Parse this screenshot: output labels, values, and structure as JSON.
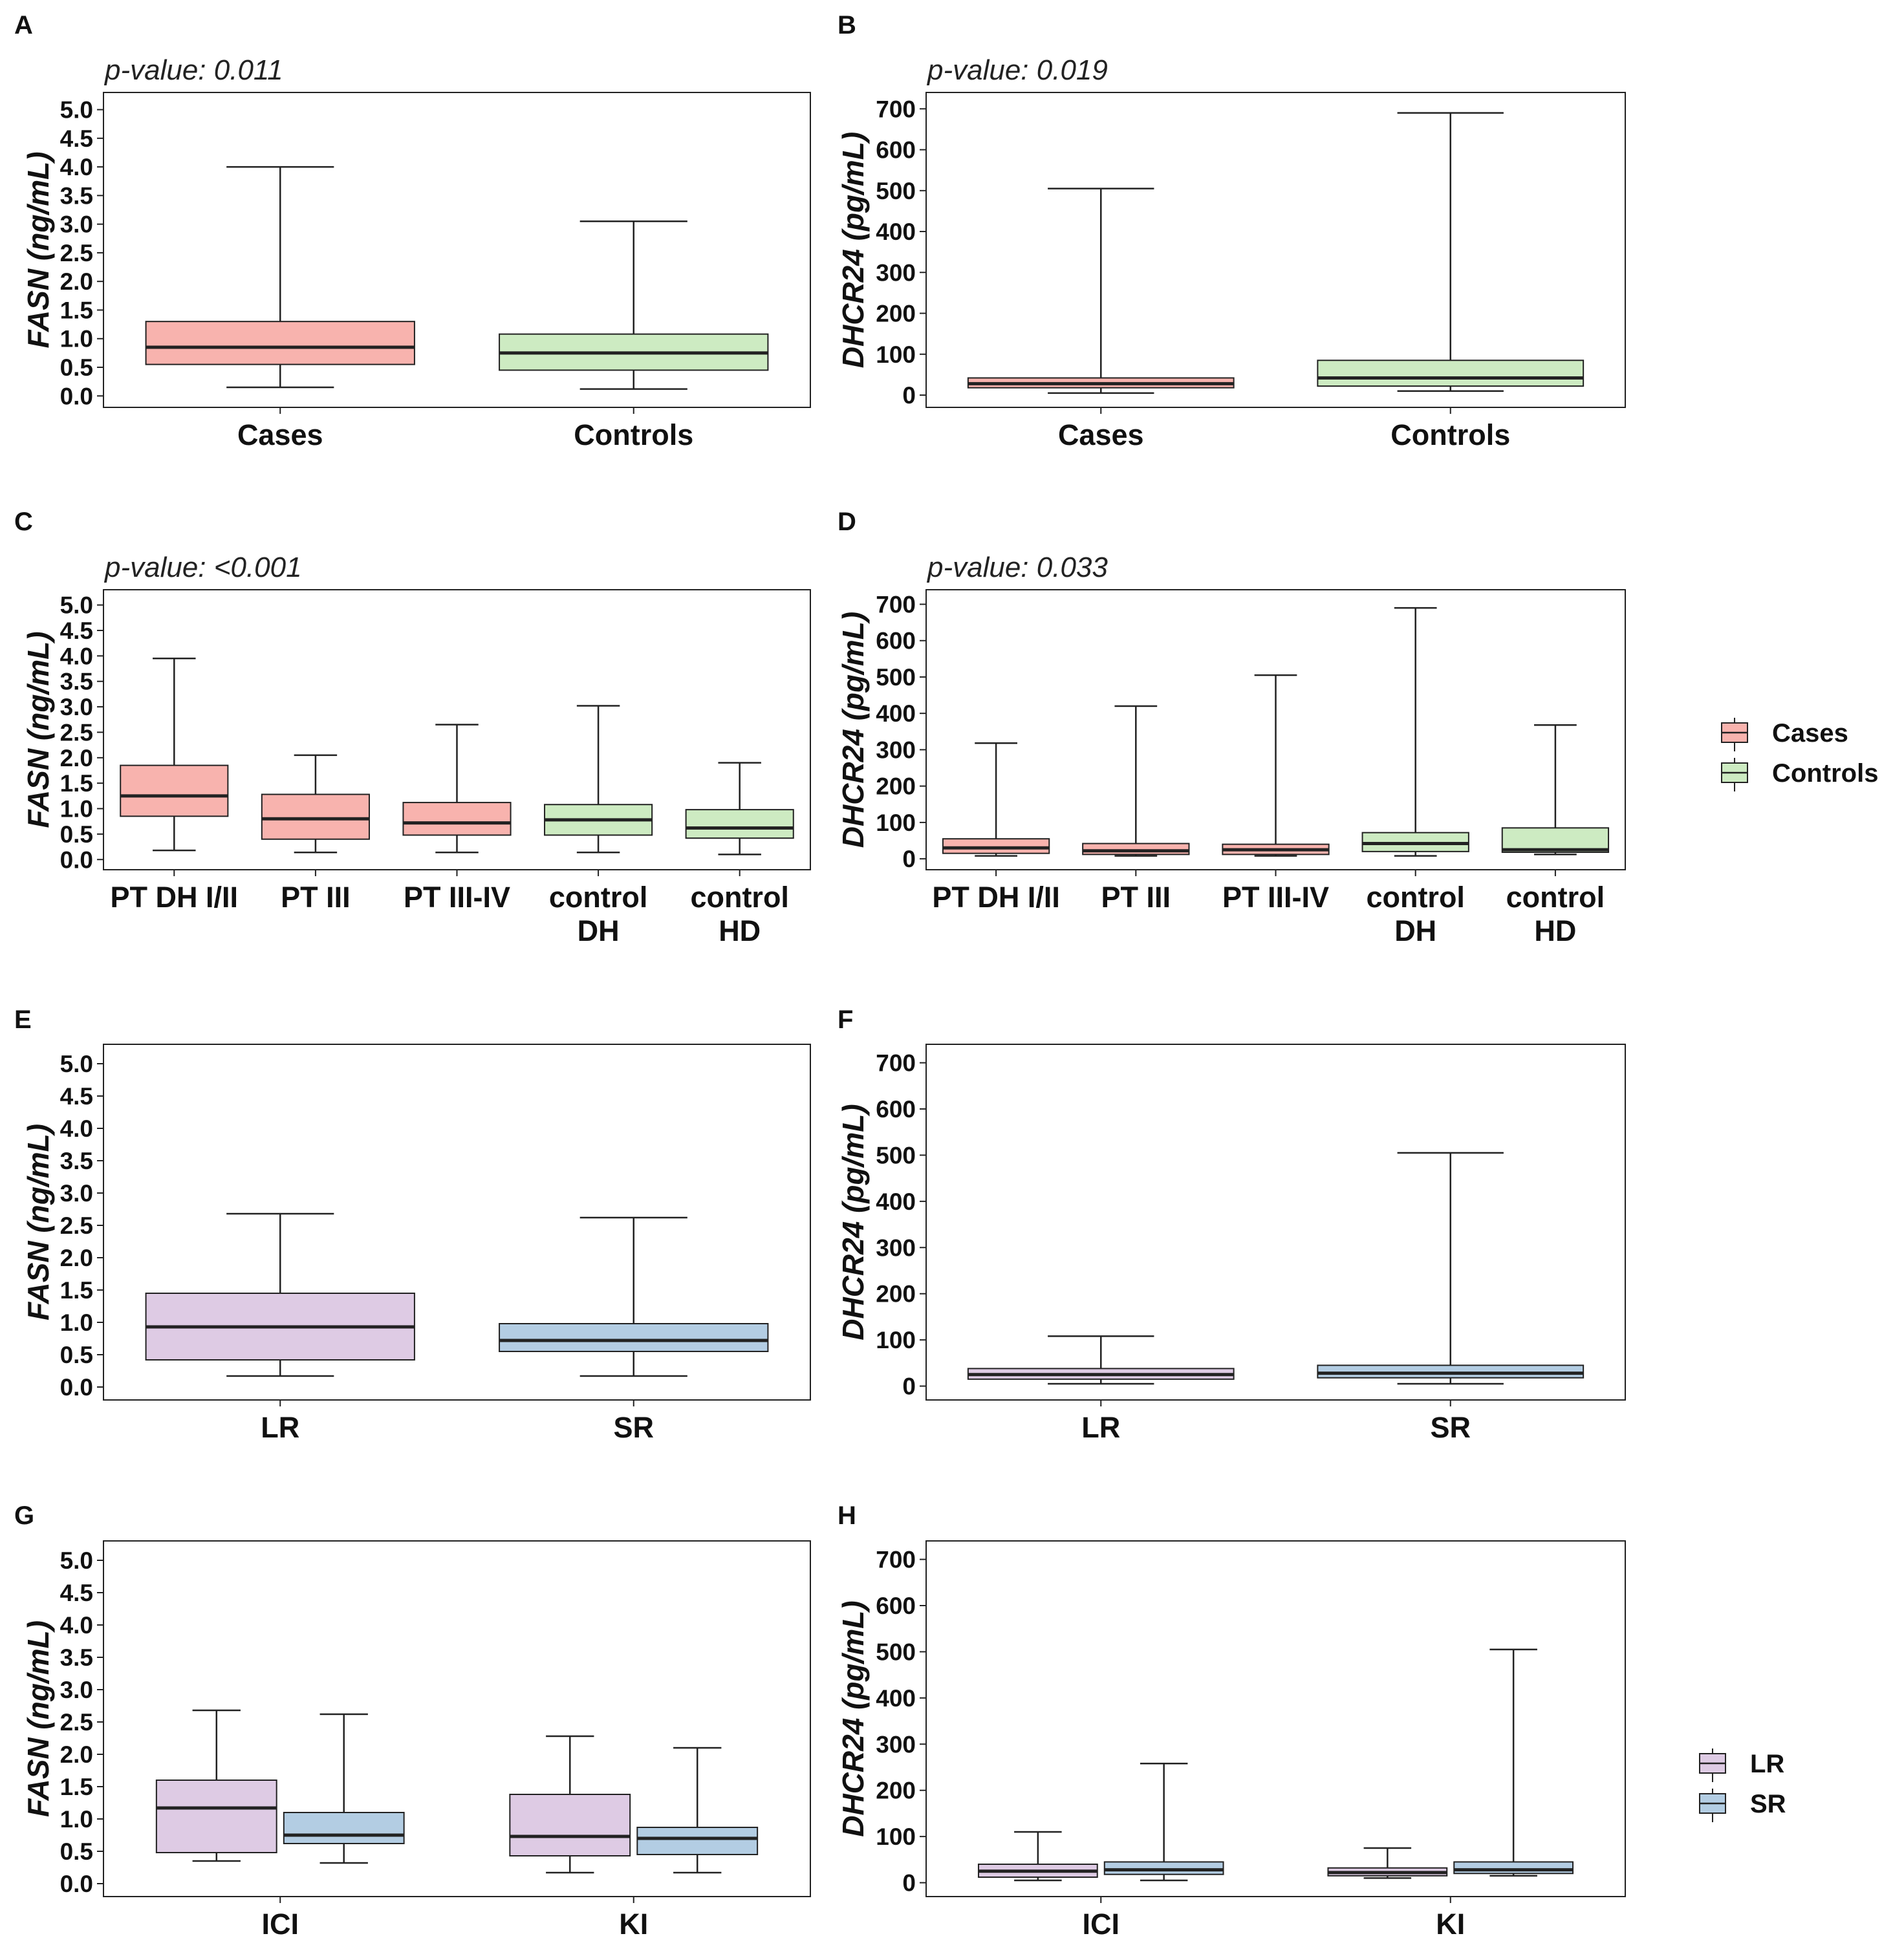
{
  "colors": {
    "cases": "#F8B3AE",
    "controls": "#CDEBC2",
    "lr": "#DECBE4",
    "sr": "#B3CDE3",
    "line": "#222222"
  },
  "legends": [
    {
      "id": "legend-cases-controls",
      "items": [
        {
          "label": "Cases",
          "color_key": "cases"
        },
        {
          "label": "Controls",
          "color_key": "controls"
        }
      ]
    },
    {
      "id": "legend-lr-sr",
      "items": [
        {
          "label": "LR",
          "color_key": "lr"
        },
        {
          "label": "SR",
          "color_key": "sr"
        }
      ]
    }
  ],
  "chart_data": [
    {
      "panel": "A",
      "type": "box",
      "pvalue": "p-value: 0.011",
      "ylabel": "FASN (ng/mL)",
      "ylim": [
        -0.2,
        5.3
      ],
      "yticks": [
        "0.0",
        "0.5",
        "1.0",
        "1.5",
        "2.0",
        "2.5",
        "3.0",
        "3.5",
        "4.0",
        "4.5",
        "5.0"
      ],
      "categories": [
        [
          "Cases"
        ],
        [
          "Controls"
        ]
      ],
      "boxes": [
        {
          "group": "Cases",
          "color_key": "cases",
          "min": 0.15,
          "q1": 0.55,
          "median": 0.85,
          "q3": 1.3,
          "max": 4.0
        },
        {
          "group": "Controls",
          "color_key": "controls",
          "min": 0.12,
          "q1": 0.45,
          "median": 0.75,
          "q3": 1.08,
          "max": 3.05
        }
      ]
    },
    {
      "panel": "B",
      "type": "box",
      "pvalue": "p-value: 0.019",
      "ylabel": "DHCR24 (pg/mL)",
      "ylim": [
        -30,
        740
      ],
      "yticks": [
        "0",
        "100",
        "200",
        "300",
        "400",
        "500",
        "600",
        "700"
      ],
      "categories": [
        [
          "Cases"
        ],
        [
          "Controls"
        ]
      ],
      "boxes": [
        {
          "group": "Cases",
          "color_key": "cases",
          "min": 5,
          "q1": 18,
          "median": 28,
          "q3": 42,
          "max": 505
        },
        {
          "group": "Controls",
          "color_key": "controls",
          "min": 10,
          "q1": 22,
          "median": 42,
          "q3": 85,
          "max": 690
        }
      ]
    },
    {
      "panel": "C",
      "type": "box",
      "pvalue": "p-value: <0.001",
      "ylabel": "FASN (ng/mL)",
      "ylim": [
        -0.2,
        5.3
      ],
      "yticks": [
        "0.0",
        "0.5",
        "1.0",
        "1.5",
        "2.0",
        "2.5",
        "3.0",
        "3.5",
        "4.0",
        "4.5",
        "5.0"
      ],
      "categories": [
        [
          "PT DH I/II"
        ],
        [
          "PT III"
        ],
        [
          "PT III-IV"
        ],
        [
          "control",
          "DH"
        ],
        [
          "control",
          "HD"
        ]
      ],
      "boxes": [
        {
          "group": "PT DH I/II",
          "color_key": "cases",
          "min": 0.18,
          "q1": 0.85,
          "median": 1.25,
          "q3": 1.85,
          "max": 3.95
        },
        {
          "group": "PT III",
          "color_key": "cases",
          "min": 0.14,
          "q1": 0.4,
          "median": 0.8,
          "q3": 1.28,
          "max": 2.05
        },
        {
          "group": "PT III-IV",
          "color_key": "cases",
          "min": 0.14,
          "q1": 0.48,
          "median": 0.72,
          "q3": 1.12,
          "max": 2.65
        },
        {
          "group": "control DH",
          "color_key": "controls",
          "min": 0.14,
          "q1": 0.48,
          "median": 0.78,
          "q3": 1.08,
          "max": 3.02
        },
        {
          "group": "control HD",
          "color_key": "controls",
          "min": 0.1,
          "q1": 0.42,
          "median": 0.62,
          "q3": 0.98,
          "max": 1.9
        }
      ]
    },
    {
      "panel": "D",
      "type": "box",
      "pvalue": "p-value: 0.033",
      "ylabel": "DHCR24 (pg/mL)",
      "ylim": [
        -30,
        740
      ],
      "yticks": [
        "0",
        "100",
        "200",
        "300",
        "400",
        "500",
        "600",
        "700"
      ],
      "categories": [
        [
          "PT DH I/II"
        ],
        [
          "PT III"
        ],
        [
          "PT III-IV"
        ],
        [
          "control",
          "DH"
        ],
        [
          "control",
          "HD"
        ]
      ],
      "boxes": [
        {
          "group": "PT DH I/II",
          "color_key": "cases",
          "min": 8,
          "q1": 15,
          "median": 30,
          "q3": 55,
          "max": 318
        },
        {
          "group": "PT III",
          "color_key": "cases",
          "min": 8,
          "q1": 12,
          "median": 22,
          "q3": 42,
          "max": 420
        },
        {
          "group": "PT III-IV",
          "color_key": "cases",
          "min": 8,
          "q1": 12,
          "median": 25,
          "q3": 40,
          "max": 505
        },
        {
          "group": "control DH",
          "color_key": "controls",
          "min": 8,
          "q1": 20,
          "median": 42,
          "q3": 72,
          "max": 690
        },
        {
          "group": "control HD",
          "color_key": "controls",
          "min": 12,
          "q1": 18,
          "median": 25,
          "q3": 85,
          "max": 368
        }
      ]
    },
    {
      "panel": "E",
      "type": "box",
      "pvalue": "",
      "ylabel": "FASN (ng/mL)",
      "ylim": [
        -0.2,
        5.3
      ],
      "yticks": [
        "0.0",
        "0.5",
        "1.0",
        "1.5",
        "2.0",
        "2.5",
        "3.0",
        "3.5",
        "4.0",
        "4.5",
        "5.0"
      ],
      "categories": [
        [
          "LR"
        ],
        [
          "SR"
        ]
      ],
      "boxes": [
        {
          "group": "LR",
          "color_key": "lr",
          "min": 0.17,
          "q1": 0.42,
          "median": 0.93,
          "q3": 1.45,
          "max": 2.68
        },
        {
          "group": "SR",
          "color_key": "sr",
          "min": 0.17,
          "q1": 0.55,
          "median": 0.72,
          "q3": 0.98,
          "max": 2.62
        }
      ]
    },
    {
      "panel": "F",
      "type": "box",
      "pvalue": "",
      "ylabel": "DHCR24 (pg/mL)",
      "ylim": [
        -30,
        740
      ],
      "yticks": [
        "0",
        "100",
        "200",
        "300",
        "400",
        "500",
        "600",
        "700"
      ],
      "categories": [
        [
          "LR"
        ],
        [
          "SR"
        ]
      ],
      "boxes": [
        {
          "group": "LR",
          "color_key": "lr",
          "min": 5,
          "q1": 15,
          "median": 25,
          "q3": 38,
          "max": 108
        },
        {
          "group": "SR",
          "color_key": "sr",
          "min": 5,
          "q1": 18,
          "median": 28,
          "q3": 45,
          "max": 505
        }
      ]
    },
    {
      "panel": "G",
      "type": "box",
      "pvalue": "",
      "ylabel": "FASN (ng/mL)",
      "ylim": [
        -0.2,
        5.3
      ],
      "yticks": [
        "0.0",
        "0.5",
        "1.0",
        "1.5",
        "2.0",
        "2.5",
        "3.0",
        "3.5",
        "4.0",
        "4.5",
        "5.0"
      ],
      "categories": [
        [
          "ICI"
        ],
        [
          "KI"
        ]
      ],
      "boxes": [
        {
          "group": "ICI",
          "subgroup": "LR",
          "color_key": "lr",
          "min": 0.35,
          "q1": 0.48,
          "median": 1.17,
          "q3": 1.6,
          "max": 2.68
        },
        {
          "group": "ICI",
          "subgroup": "SR",
          "color_key": "sr",
          "min": 0.32,
          "q1": 0.62,
          "median": 0.75,
          "q3": 1.1,
          "max": 2.62
        },
        {
          "group": "KI",
          "subgroup": "LR",
          "color_key": "lr",
          "min": 0.17,
          "q1": 0.43,
          "median": 0.73,
          "q3": 1.38,
          "max": 2.28
        },
        {
          "group": "KI",
          "subgroup": "SR",
          "color_key": "sr",
          "min": 0.17,
          "q1": 0.45,
          "median": 0.7,
          "q3": 0.87,
          "max": 2.1
        }
      ]
    },
    {
      "panel": "H",
      "type": "box",
      "pvalue": "",
      "ylabel": "DHCR24 (pg/mL)",
      "ylim": [
        -30,
        740
      ],
      "yticks": [
        "0",
        "100",
        "200",
        "300",
        "400",
        "500",
        "600",
        "700"
      ],
      "categories": [
        [
          "ICI"
        ],
        [
          "KI"
        ]
      ],
      "boxes": [
        {
          "group": "ICI",
          "subgroup": "LR",
          "color_key": "lr",
          "min": 5,
          "q1": 12,
          "median": 25,
          "q3": 40,
          "max": 110
        },
        {
          "group": "ICI",
          "subgroup": "SR",
          "color_key": "sr",
          "min": 5,
          "q1": 18,
          "median": 28,
          "q3": 45,
          "max": 258
        },
        {
          "group": "KI",
          "subgroup": "LR",
          "color_key": "lr",
          "min": 10,
          "q1": 15,
          "median": 22,
          "q3": 32,
          "max": 75
        },
        {
          "group": "KI",
          "subgroup": "SR",
          "color_key": "sr",
          "min": 15,
          "q1": 20,
          "median": 28,
          "q3": 45,
          "max": 505
        }
      ]
    }
  ]
}
